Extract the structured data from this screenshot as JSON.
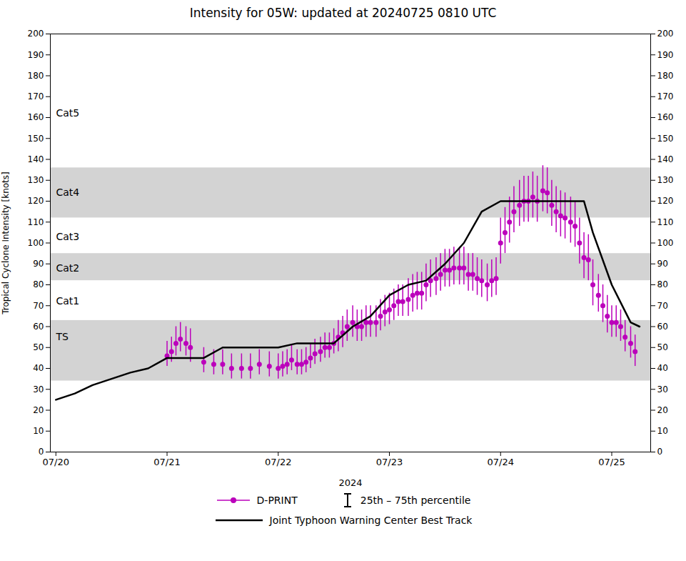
{
  "chart_data": {
    "type": "line",
    "title": "Intensity for 05W: updated at 20240725 0810 UTC",
    "xlabel": "2024",
    "ylabel": "Tropical Cyclone Intensity [knots]",
    "xlim": [
      -0.05,
      5.35
    ],
    "xticks": [
      {
        "value": 0,
        "label": "07/20"
      },
      {
        "value": 1,
        "label": "07/21"
      },
      {
        "value": 2,
        "label": "07/22"
      },
      {
        "value": 3,
        "label": "07/23"
      },
      {
        "value": 4,
        "label": "07/24"
      },
      {
        "value": 5,
        "label": "07/25"
      }
    ],
    "ylim": [
      0,
      200
    ],
    "yticks": [
      0,
      10,
      20,
      30,
      40,
      50,
      60,
      70,
      80,
      90,
      100,
      110,
      120,
      130,
      140,
      150,
      160,
      170,
      180,
      190,
      200
    ],
    "grid": false,
    "legend": "bottom",
    "category_bands": [
      {
        "label": "TS",
        "ymin": 34,
        "ymax": 63,
        "color": "#d3d3d3",
        "label_y": 55
      },
      {
        "label": "Cat1",
        "ymin": 63,
        "ymax": 82,
        "color": "#ffffff",
        "label_y": 72
      },
      {
        "label": "Cat2",
        "ymin": 82,
        "ymax": 95,
        "color": "#d3d3d3",
        "label_y": 88
      },
      {
        "label": "Cat3",
        "ymin": 95,
        "ymax": 112,
        "color": "#ffffff",
        "label_y": 103
      },
      {
        "label": "Cat4",
        "ymin": 112,
        "ymax": 136,
        "color": "#d3d3d3",
        "label_y": 124
      },
      {
        "label": "Cat5",
        "ymin": 136,
        "ymax": 200,
        "color": "#ffffff",
        "label_y": 162
      }
    ],
    "error_bar_label": "25th – 75th percentile",
    "series": [
      {
        "name": "Joint Typhoon Warning Center Best Track",
        "type": "line",
        "color": "#000000",
        "x": [
          0.0,
          0.17,
          0.33,
          0.5,
          0.67,
          0.83,
          1.0,
          1.17,
          1.33,
          1.5,
          1.67,
          1.83,
          2.0,
          2.17,
          2.33,
          2.5,
          2.67,
          2.83,
          3.0,
          3.17,
          3.33,
          3.5,
          3.67,
          3.83,
          4.0,
          4.17,
          4.33,
          4.5,
          4.67,
          4.75,
          4.83,
          5.0,
          5.17,
          5.25
        ],
        "values": [
          25,
          28,
          32,
          35,
          38,
          40,
          45,
          45,
          45,
          50,
          50,
          50,
          50,
          52,
          52,
          52,
          60,
          65,
          75,
          80,
          82,
          90,
          100,
          115,
          120,
          120,
          120,
          120,
          120,
          120,
          105,
          80,
          62,
          60
        ]
      },
      {
        "name": "D-PRINT",
        "type": "scatter",
        "color": "#bb00bb",
        "x": [
          1.0,
          1.04,
          1.08,
          1.12,
          1.17,
          1.21,
          1.33,
          1.42,
          1.5,
          1.58,
          1.67,
          1.75,
          1.83,
          1.92,
          2.0,
          2.04,
          2.08,
          2.12,
          2.17,
          2.21,
          2.25,
          2.29,
          2.33,
          2.38,
          2.42,
          2.46,
          2.5,
          2.54,
          2.58,
          2.62,
          2.67,
          2.71,
          2.75,
          2.79,
          2.83,
          2.88,
          2.92,
          2.96,
          3.0,
          3.04,
          3.08,
          3.12,
          3.17,
          3.21,
          3.25,
          3.29,
          3.33,
          3.37,
          3.42,
          3.46,
          3.5,
          3.54,
          3.58,
          3.63,
          3.67,
          3.71,
          3.75,
          3.79,
          3.83,
          3.88,
          3.92,
          3.96,
          4.0,
          4.04,
          4.08,
          4.12,
          4.17,
          4.21,
          4.25,
          4.29,
          4.33,
          4.38,
          4.42,
          4.46,
          4.5,
          4.54,
          4.58,
          4.63,
          4.67,
          4.71,
          4.75,
          4.79,
          4.83,
          4.88,
          4.92,
          4.96,
          5.0,
          5.04,
          5.08,
          5.12,
          5.17,
          5.21
        ],
        "values": [
          46,
          48,
          52,
          54,
          52,
          50,
          43,
          42,
          42,
          40,
          40,
          40,
          42,
          41,
          40,
          41,
          42,
          44,
          42,
          42,
          43,
          45,
          47,
          48,
          50,
          50,
          52,
          55,
          57,
          60,
          62,
          60,
          60,
          62,
          62,
          62,
          65,
          67,
          68,
          70,
          72,
          72,
          73,
          75,
          76,
          76,
          80,
          82,
          83,
          85,
          87,
          87,
          88,
          88,
          88,
          85,
          85,
          83,
          82,
          80,
          82,
          83,
          100,
          105,
          110,
          115,
          118,
          120,
          120,
          122,
          120,
          125,
          124,
          118,
          115,
          113,
          112,
          110,
          108,
          100,
          93,
          92,
          80,
          75,
          70,
          65,
          62,
          62,
          60,
          55,
          52,
          48
        ],
        "error_low": [
          5,
          5,
          6,
          6,
          6,
          7,
          5,
          5,
          5,
          5,
          5,
          5,
          5,
          5,
          5,
          5,
          5,
          5,
          5,
          5,
          5,
          5,
          5,
          5,
          5,
          5,
          5,
          7,
          7,
          7,
          7,
          7,
          7,
          7,
          7,
          7,
          7,
          7,
          7,
          7,
          7,
          7,
          8,
          8,
          8,
          8,
          8,
          8,
          8,
          8,
          8,
          8,
          8,
          8,
          8,
          8,
          8,
          8,
          8,
          8,
          8,
          8,
          10,
          10,
          10,
          10,
          10,
          10,
          10,
          10,
          10,
          10,
          10,
          10,
          10,
          10,
          10,
          10,
          10,
          10,
          10,
          10,
          10,
          8,
          8,
          8,
          7,
          7,
          7,
          7,
          7,
          7
        ],
        "error_high": [
          7,
          7,
          8,
          8,
          8,
          9,
          7,
          7,
          7,
          7,
          7,
          7,
          7,
          7,
          7,
          7,
          7,
          7,
          7,
          7,
          7,
          7,
          7,
          7,
          7,
          7,
          7,
          8,
          8,
          8,
          8,
          8,
          8,
          8,
          8,
          8,
          8,
          8,
          8,
          8,
          8,
          8,
          10,
          10,
          10,
          10,
          10,
          10,
          10,
          10,
          10,
          10,
          10,
          10,
          10,
          10,
          10,
          10,
          10,
          10,
          10,
          10,
          12,
          12,
          12,
          12,
          12,
          12,
          12,
          12,
          12,
          12,
          12,
          12,
          12,
          12,
          12,
          12,
          12,
          12,
          12,
          12,
          12,
          10,
          10,
          10,
          8,
          8,
          8,
          8,
          8,
          8
        ]
      }
    ]
  }
}
